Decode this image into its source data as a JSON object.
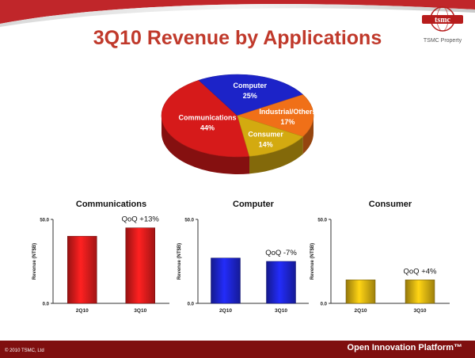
{
  "slide": {
    "title": "3Q10 Revenue by Applications",
    "logo_text": "tsmc",
    "logo_caption": "TSMC Property",
    "footer_copyright": "© 2010 TSMC, Ltd",
    "footer_tagline": "Open Innovation Platform™"
  },
  "colors": {
    "title": "#c0392b",
    "communications": "#d61a1a",
    "computer": "#1c23c8",
    "consumer": "#d3aa10",
    "industrial": "#f07018",
    "footer_bar": "#7f0f0f"
  },
  "chart_data": [
    {
      "type": "pie",
      "slices": [
        {
          "label": "Communications",
          "value_label": "44%",
          "value": 44,
          "color": "#d61a1a"
        },
        {
          "label": "Computer",
          "value_label": "25%",
          "value": 25,
          "color": "#1c23c8"
        },
        {
          "label": "Industrial/Others",
          "value_label": "17%",
          "value": 17,
          "color": "#f07018"
        },
        {
          "label": "Consumer",
          "value_label": "14%",
          "value": 14,
          "color": "#d3aa10"
        }
      ]
    },
    {
      "type": "bar",
      "title": "Communications",
      "categories": [
        "2Q10",
        "3Q10"
      ],
      "values": [
        40,
        45
      ],
      "ylabel": "Revenue (NT$B)",
      "ylim": [
        0,
        50
      ],
      "yticks": [
        "0.0",
        "50.0"
      ],
      "annotation": "QoQ +13%",
      "color": "#d61a1a"
    },
    {
      "type": "bar",
      "title": "Computer",
      "categories": [
        "2Q10",
        "3Q10"
      ],
      "values": [
        27,
        25
      ],
      "ylabel": "Revenue (NT$B)",
      "ylim": [
        0,
        50
      ],
      "yticks": [
        "0.0",
        "50.0"
      ],
      "annotation": "QoQ -7%",
      "color": "#1c23c8"
    },
    {
      "type": "bar",
      "title": "Consumer",
      "categories": [
        "2Q10",
        "3Q10"
      ],
      "values": [
        14,
        14
      ],
      "ylabel": "Revenue (NT$B)",
      "ylim": [
        0,
        50
      ],
      "yticks": [
        "0.0",
        "50.0"
      ],
      "annotation": "QoQ +4%",
      "color": "#d3aa10"
    }
  ]
}
